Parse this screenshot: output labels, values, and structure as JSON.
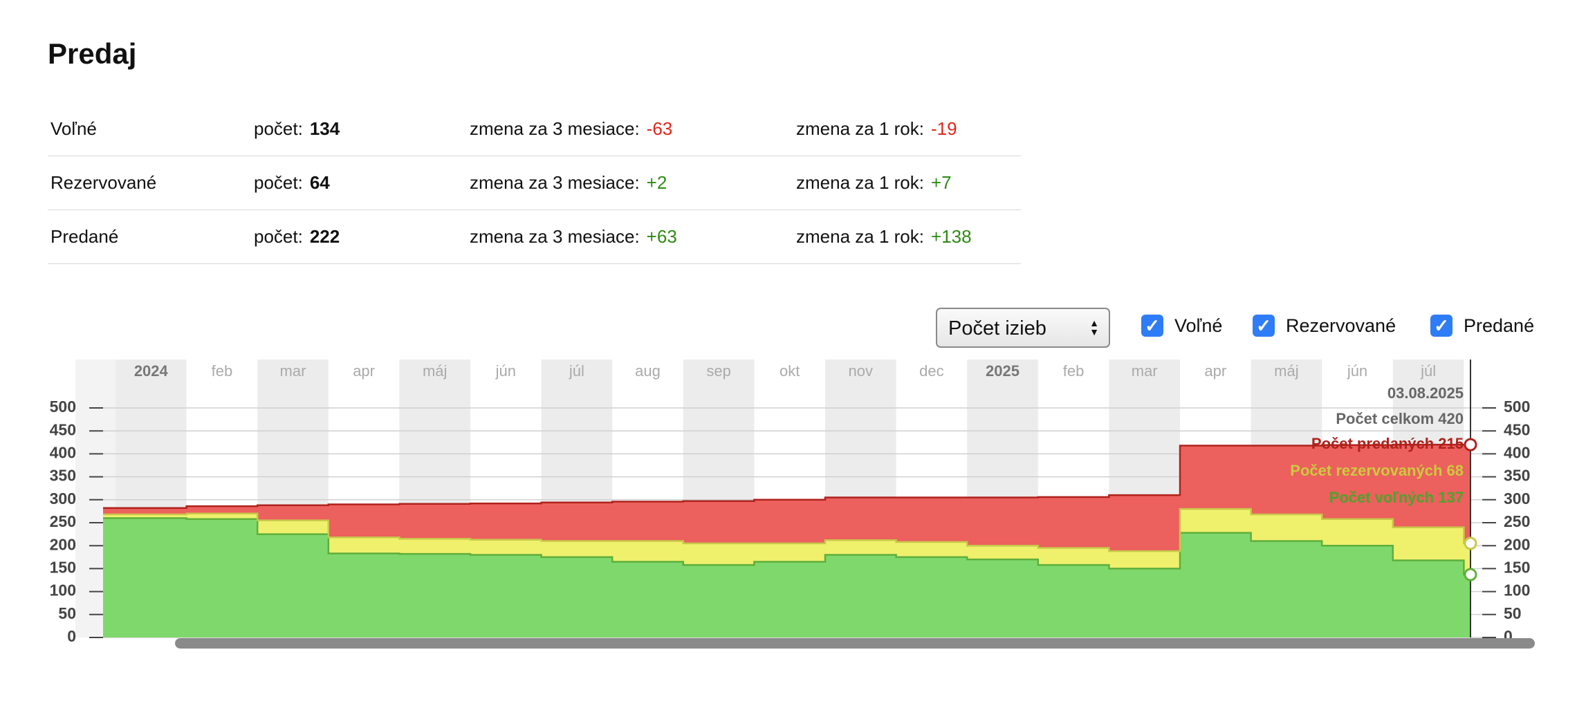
{
  "header": {
    "title": "Predaj"
  },
  "table": {
    "rows": [
      {
        "label": "Voľné",
        "count_label": "počet:",
        "count": 134,
        "change3_label": "zmena za 3 mesiace:",
        "change3": "-63",
        "change12_label": "zmena za 1 rok:",
        "change12": "-19"
      },
      {
        "label": "Rezervované",
        "count_label": "počet:",
        "count": 64,
        "change3_label": "zmena za 3 mesiace:",
        "change3": "+2",
        "change12_label": "zmena za 1 rok:",
        "change12": "+7"
      },
      {
        "label": "Predané",
        "count_label": "počet:",
        "count": 222,
        "change3_label": "zmena za 3 mesiace:",
        "change3": "+63",
        "change12_label": "zmena za 1 rok:",
        "change12": "+138"
      }
    ]
  },
  "controls": {
    "select": "Počet izieb"
  },
  "chart_data": {
    "type": "stacked-step-area",
    "categories": [
      "2024",
      "feb",
      "mar",
      "apr",
      "máj",
      "jún",
      "júl",
      "aug",
      "sep",
      "okt",
      "nov",
      "dec",
      "2025",
      "feb",
      "mar",
      "apr",
      "máj",
      "jún",
      "júl",
      null
    ],
    "series": [
      {
        "name": "Voľné",
        "color": "#7fd86b",
        "line": "#5fae3c",
        "values": [
          260,
          258,
          225,
          183,
          182,
          180,
          175,
          165,
          158,
          165,
          180,
          175,
          170,
          158,
          150,
          228,
          210,
          200,
          168,
          137
        ]
      },
      {
        "name": "Rezervované",
        "color": "#eff06c",
        "line": "#c8c84a",
        "values": [
          8,
          12,
          30,
          35,
          33,
          33,
          35,
          45,
          47,
          40,
          32,
          33,
          30,
          37,
          38,
          52,
          58,
          58,
          72,
          68
        ]
      },
      {
        "name": "Predané",
        "color": "#ec605e",
        "line": "#b0221c",
        "values": [
          14,
          16,
          33,
          72,
          76,
          79,
          84,
          86,
          92,
          95,
          93,
          97,
          105,
          111,
          122,
          138,
          150,
          161,
          180,
          215
        ]
      }
    ],
    "ylim": [
      0,
      500
    ],
    "yticks": [
      0,
      50,
      100,
      150,
      200,
      250,
      300,
      350,
      400,
      450,
      500
    ],
    "grid": true,
    "tooltip": {
      "date": "03.08.2025",
      "total": "Počet celkom 420",
      "lines": [
        "Počet predaných 215",
        "Počet rezervovaných 68",
        "Počet voľných 137"
      ]
    }
  }
}
